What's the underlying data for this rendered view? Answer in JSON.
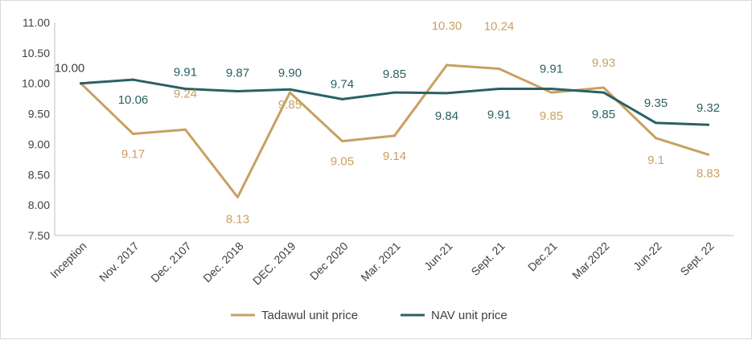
{
  "chart_data": {
    "type": "line",
    "title": "",
    "xlabel": "",
    "ylabel": "",
    "ylim": [
      7.5,
      11.0
    ],
    "yticks": [
      "7.50",
      "8.00",
      "8.50",
      "9.00",
      "9.50",
      "10.00",
      "10.50",
      "11.00"
    ],
    "grid": false,
    "legend_position": "bottom",
    "categories": [
      "Inception",
      "Nov. 2017",
      "Dec. 2107",
      "Dec. 2018",
      "DEC. 2019",
      "Dec 2020",
      "Mar. 2021",
      "Jun-21",
      "Sept. 21",
      "Dec.21",
      "Mar.2022",
      "Jun-22",
      "Sept. 22"
    ],
    "series": [
      {
        "name": "Tadawul unit price",
        "color": "#c9a062",
        "values": [
          10.0,
          9.17,
          9.24,
          8.13,
          9.85,
          9.05,
          9.14,
          10.3,
          10.24,
          9.85,
          9.93,
          9.1,
          8.83
        ],
        "labels": [
          "10.00",
          "9.17",
          "9.24",
          "8.13",
          "9.85",
          "9.05",
          "9.14",
          "10.30",
          "10.24",
          "9.85",
          "9.93",
          "9.1",
          "8.83"
        ]
      },
      {
        "name": "NAV unit price",
        "color": "#2a6163",
        "values": [
          10.0,
          10.06,
          9.91,
          9.87,
          9.9,
          9.74,
          9.85,
          9.84,
          9.91,
          9.91,
          9.85,
          9.35,
          9.32
        ],
        "labels": [
          "",
          "10.06",
          "9.91",
          "9.87",
          "9.90",
          "9.74",
          "9.85",
          "9.84",
          "9.91",
          "9.91",
          "9.85",
          "9.35",
          "9.32"
        ]
      }
    ]
  }
}
